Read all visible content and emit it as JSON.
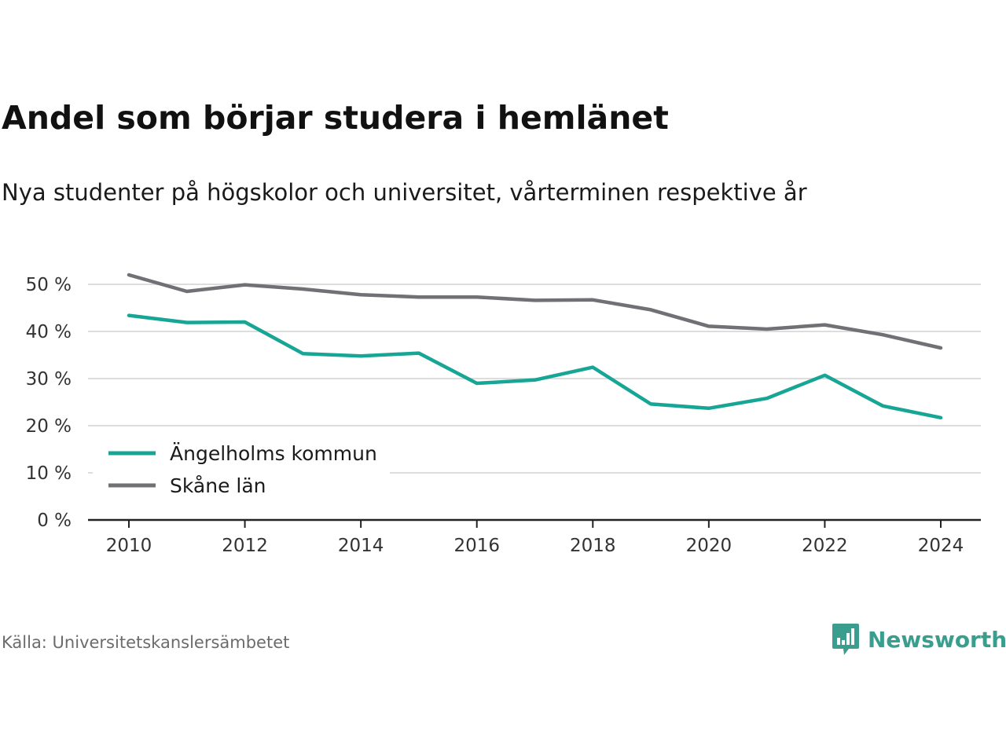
{
  "header": {
    "title": "Andel som börjar studera i hemlänet",
    "subtitle": "Nya studenter på högskolor och universitet, vårterminen respektive år"
  },
  "footer": {
    "source": "Källa: Universitetskanslersämbetet",
    "brand": "Newsworthy",
    "brand_icon": "bar-chart-speech-bubble-icon",
    "brand_color": "#3a9e8e"
  },
  "chart_data": {
    "type": "line",
    "x": [
      2010,
      2011,
      2012,
      2013,
      2014,
      2015,
      2016,
      2017,
      2018,
      2019,
      2020,
      2021,
      2022,
      2023,
      2024
    ],
    "x_tick_labels": [
      "2010",
      "2012",
      "2014",
      "2016",
      "2018",
      "2020",
      "2022",
      "2024"
    ],
    "x_tick_values": [
      2010,
      2012,
      2014,
      2016,
      2018,
      2020,
      2022,
      2024
    ],
    "y_tick_labels": [
      "0 %",
      "10 %",
      "20 %",
      "30 %",
      "40 %",
      "50 %"
    ],
    "y_tick_values": [
      0,
      10,
      20,
      30,
      40,
      50
    ],
    "ylim": [
      0,
      50
    ],
    "grid": true,
    "legend_position": "bottom-left",
    "series": [
      {
        "name": "Ängelholms kommun",
        "color": "#17a595",
        "values": [
          43.4,
          41.9,
          42.0,
          35.3,
          34.8,
          35.4,
          29.0,
          29.7,
          32.4,
          24.6,
          23.7,
          25.8,
          30.7,
          24.2,
          21.7
        ]
      },
      {
        "name": "Skåne län",
        "color": "#707075",
        "values": [
          52.0,
          48.5,
          49.9,
          49.0,
          47.8,
          47.3,
          47.3,
          46.6,
          46.7,
          44.6,
          41.1,
          40.5,
          41.4,
          39.3,
          36.5
        ]
      }
    ]
  }
}
